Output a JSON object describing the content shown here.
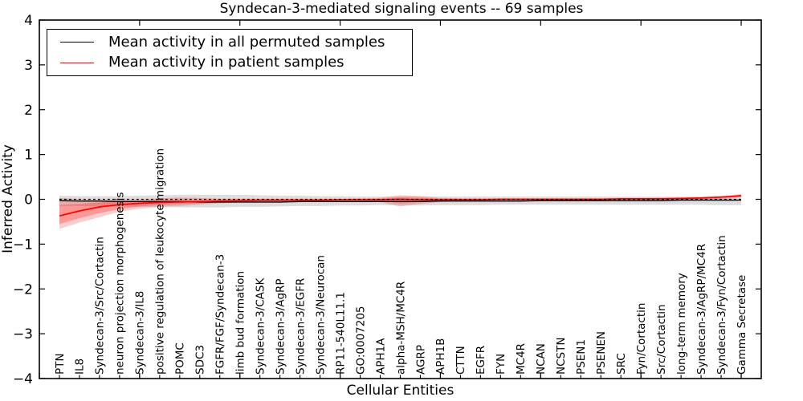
{
  "title": "Syndecan-3-mediated signaling events -- 69 samples",
  "axes": {
    "xlabel": "Cellular Entities",
    "ylabel": "Inferred Activity"
  },
  "legend": {
    "items": [
      {
        "label": "Mean activity in all permuted samples",
        "color": "#000000"
      },
      {
        "label": "Mean activity in patient samples",
        "color": "#ff0000"
      }
    ]
  },
  "chart_data": {
    "type": "line",
    "title": "Syndecan-3-mediated signaling events -- 69 samples",
    "xlabel": "Cellular Entities",
    "ylabel": "Inferred Activity",
    "ylim": [
      -4,
      4
    ],
    "yticks": [
      4,
      3,
      2,
      1,
      0,
      -1,
      -2,
      -3,
      -4
    ],
    "ytick_labels": [
      "4",
      "3",
      "2",
      "1",
      "0",
      "−1",
      "−2",
      "−3",
      "−4"
    ],
    "x_major_tick_positions": [
      0,
      5,
      10,
      15,
      20,
      25,
      30,
      35
    ],
    "grid": false,
    "legend_position": "upper left",
    "zero_line": {
      "y": 0,
      "style": "dashed",
      "color": "#000000"
    },
    "categories": [
      "PTN",
      "IL8",
      "Syndecan-3/Src/Cortactin",
      "neuron projection morphogenesis",
      "Syndecan-3/IL8",
      "positive regulation of leukocyte migration",
      "POMC",
      "SDC3",
      "FGFR/FGF/Syndecan-3",
      "limb bud formation",
      "Syndecan-3/CASK",
      "Syndecan-3/AgRP",
      "Syndecan-3/EGFR",
      "Syndecan-3/Neurocan",
      "RP11-540L11.1",
      "GO:0007205",
      "APH1A",
      "alpha-MSH/MC4R",
      "AGRP",
      "APH1B",
      "CTTN",
      "EGFR",
      "FYN",
      "MC4R",
      "NCAN",
      "NCSTN",
      "PSEN1",
      "PSENEN",
      "SRC",
      "Fyn/Cortactin",
      "Src/Cortactin",
      "long-term memory",
      "Syndecan-3/AgRP/MC4R",
      "Syndecan-3/Fyn/Cortactin",
      "Gamma Secretase"
    ],
    "series": [
      {
        "name": "Mean activity in all permuted samples",
        "color": "#000000",
        "values": [
          -0.03,
          -0.04,
          -0.04,
          -0.05,
          -0.05,
          -0.05,
          -0.05,
          -0.06,
          -0.06,
          -0.06,
          -0.06,
          -0.06,
          -0.05,
          -0.05,
          -0.05,
          -0.05,
          -0.05,
          -0.05,
          -0.05,
          -0.04,
          -0.04,
          -0.04,
          -0.04,
          -0.04,
          -0.03,
          -0.03,
          -0.03,
          -0.03,
          -0.03,
          -0.03,
          -0.03,
          -0.02,
          -0.02,
          -0.02,
          -0.02
        ]
      },
      {
        "name": "Mean activity in patient samples",
        "color": "#ff0000",
        "values": [
          -0.37,
          -0.26,
          -0.17,
          -0.12,
          -0.09,
          -0.07,
          -0.06,
          -0.05,
          -0.04,
          -0.03,
          -0.02,
          -0.02,
          -0.02,
          -0.02,
          -0.01,
          -0.01,
          -0.01,
          0.0,
          -0.01,
          -0.01,
          -0.01,
          -0.01,
          0.0,
          0.0,
          0.0,
          0.0,
          0.0,
          0.0,
          0.01,
          0.01,
          0.01,
          0.02,
          0.03,
          0.05,
          0.08
        ]
      }
    ],
    "bands": [
      {
        "name": "permuted-samples-spread",
        "color": "#000000",
        "opacity": 0.13,
        "upper": [
          0.08,
          0.07,
          0.07,
          0.07,
          0.08,
          0.09,
          0.1,
          0.1,
          0.1,
          0.1,
          0.09,
          0.08,
          0.08,
          0.07,
          0.07,
          0.06,
          0.06,
          0.07,
          0.07,
          0.06,
          0.06,
          0.06,
          0.06,
          0.06,
          0.06,
          0.06,
          0.06,
          0.06,
          0.06,
          0.06,
          0.06,
          0.06,
          0.07,
          0.07,
          0.07
        ],
        "lower": [
          -0.15,
          -0.15,
          -0.16,
          -0.16,
          -0.17,
          -0.17,
          -0.18,
          -0.18,
          -0.18,
          -0.17,
          -0.17,
          -0.16,
          -0.15,
          -0.15,
          -0.14,
          -0.14,
          -0.13,
          -0.14,
          -0.14,
          -0.13,
          -0.13,
          -0.13,
          -0.12,
          -0.12,
          -0.12,
          -0.12,
          -0.12,
          -0.12,
          -0.12,
          -0.12,
          -0.12,
          -0.12,
          -0.12,
          -0.13,
          -0.13
        ]
      },
      {
        "name": "patient-samples-spread-outer",
        "color": "#ff0000",
        "opacity": 0.2,
        "upper": [
          0.03,
          0.0,
          -0.01,
          -0.01,
          0.0,
          0.02,
          0.04,
          0.03,
          0.01,
          0.01,
          0.01,
          0.01,
          0.01,
          0.01,
          0.01,
          0.02,
          0.03,
          0.09,
          0.07,
          0.03,
          0.02,
          0.02,
          0.02,
          0.02,
          0.02,
          0.02,
          0.02,
          0.02,
          0.02,
          0.02,
          0.03,
          0.03,
          0.04,
          0.06,
          0.12
        ],
        "lower": [
          -0.66,
          -0.52,
          -0.4,
          -0.28,
          -0.21,
          -0.17,
          -0.15,
          -0.12,
          -0.09,
          -0.07,
          -0.06,
          -0.05,
          -0.05,
          -0.05,
          -0.05,
          -0.05,
          -0.06,
          -0.16,
          -0.1,
          -0.06,
          -0.05,
          -0.04,
          -0.04,
          -0.03,
          -0.03,
          -0.03,
          -0.03,
          -0.03,
          -0.03,
          -0.03,
          -0.02,
          -0.02,
          -0.01,
          0.0,
          0.04
        ]
      },
      {
        "name": "patient-samples-spread-inner",
        "color": "#ff0000",
        "opacity": 0.26,
        "upper": [
          -0.12,
          -0.1,
          -0.07,
          -0.05,
          -0.03,
          -0.02,
          -0.01,
          -0.01,
          0.0,
          0.0,
          0.0,
          0.0,
          0.0,
          0.0,
          0.0,
          0.0,
          0.01,
          0.04,
          0.03,
          0.01,
          0.01,
          0.01,
          0.01,
          0.01,
          0.01,
          0.01,
          0.01,
          0.01,
          0.01,
          0.01,
          0.02,
          0.02,
          0.03,
          0.04,
          0.1
        ],
        "lower": [
          -0.55,
          -0.42,
          -0.31,
          -0.22,
          -0.16,
          -0.13,
          -0.11,
          -0.09,
          -0.07,
          -0.05,
          -0.04,
          -0.04,
          -0.04,
          -0.04,
          -0.03,
          -0.03,
          -0.04,
          -0.09,
          -0.06,
          -0.04,
          -0.03,
          -0.03,
          -0.02,
          -0.02,
          -0.02,
          -0.02,
          -0.02,
          -0.02,
          -0.01,
          -0.01,
          -0.01,
          -0.01,
          0.0,
          0.02,
          0.06
        ]
      }
    ]
  }
}
